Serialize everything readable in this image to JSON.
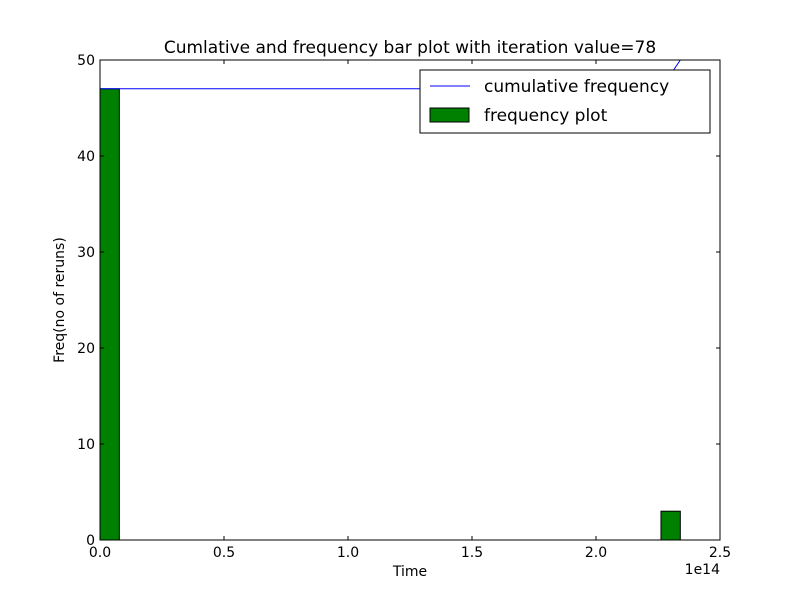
{
  "chart_data": {
    "type": "bar",
    "title": "Cumlative and frequency bar plot with iteration value=78",
    "xlabel": "Time",
    "ylabel": "Freq(no of reruns)",
    "x_offset_label": "1e14",
    "xlim": [
      0,
      2.5
    ],
    "ylim": [
      0,
      50
    ],
    "xticks": [
      0.0,
      0.5,
      1.0,
      1.5,
      2.0,
      2.5
    ],
    "xtick_labels": [
      "0.0",
      "0.5",
      "1.0",
      "1.5",
      "2.0",
      "2.5"
    ],
    "yticks": [
      0,
      10,
      20,
      30,
      40,
      50
    ],
    "ytick_labels": [
      "0",
      "10",
      "20",
      "30",
      "40",
      "50"
    ],
    "grid": false,
    "legend_position": "top-right",
    "bar_width": 0.078,
    "bars": {
      "name": "frequency plot",
      "color": "#008000",
      "edge": "#000000",
      "left": [
        0.0,
        0.078,
        0.156,
        0.234,
        0.312,
        0.39,
        0.468,
        0.546,
        0.624,
        0.702,
        0.78,
        0.858,
        0.936,
        1.014,
        1.092,
        1.17,
        1.248,
        1.326,
        1.404,
        1.482,
        1.56,
        1.638,
        1.716,
        1.794,
        1.872,
        1.95,
        2.028,
        2.106,
        2.184,
        2.262
      ],
      "values": [
        47,
        0,
        0,
        0,
        0,
        0,
        0,
        0,
        0,
        0,
        0,
        0,
        0,
        0,
        0,
        0,
        0,
        0,
        0,
        0,
        0,
        0,
        0,
        0,
        0,
        0,
        0,
        0,
        0,
        3
      ]
    },
    "line": {
      "name": "cumulative frequency",
      "color": "#0000ff",
      "x": [
        0.0,
        0.078,
        0.156,
        0.234,
        0.312,
        0.39,
        0.468,
        0.546,
        0.624,
        0.702,
        0.78,
        0.858,
        0.936,
        1.014,
        1.092,
        1.17,
        1.248,
        1.326,
        1.404,
        1.482,
        1.56,
        1.638,
        1.716,
        1.794,
        1.872,
        1.95,
        2.028,
        2.106,
        2.184,
        2.262,
        2.34
      ],
      "y": [
        47,
        47,
        47,
        47,
        47,
        47,
        47,
        47,
        47,
        47,
        47,
        47,
        47,
        47,
        47,
        47,
        47,
        47,
        47,
        47,
        47,
        47,
        47,
        47,
        47,
        47,
        47,
        47,
        47,
        47,
        50
      ]
    }
  }
}
